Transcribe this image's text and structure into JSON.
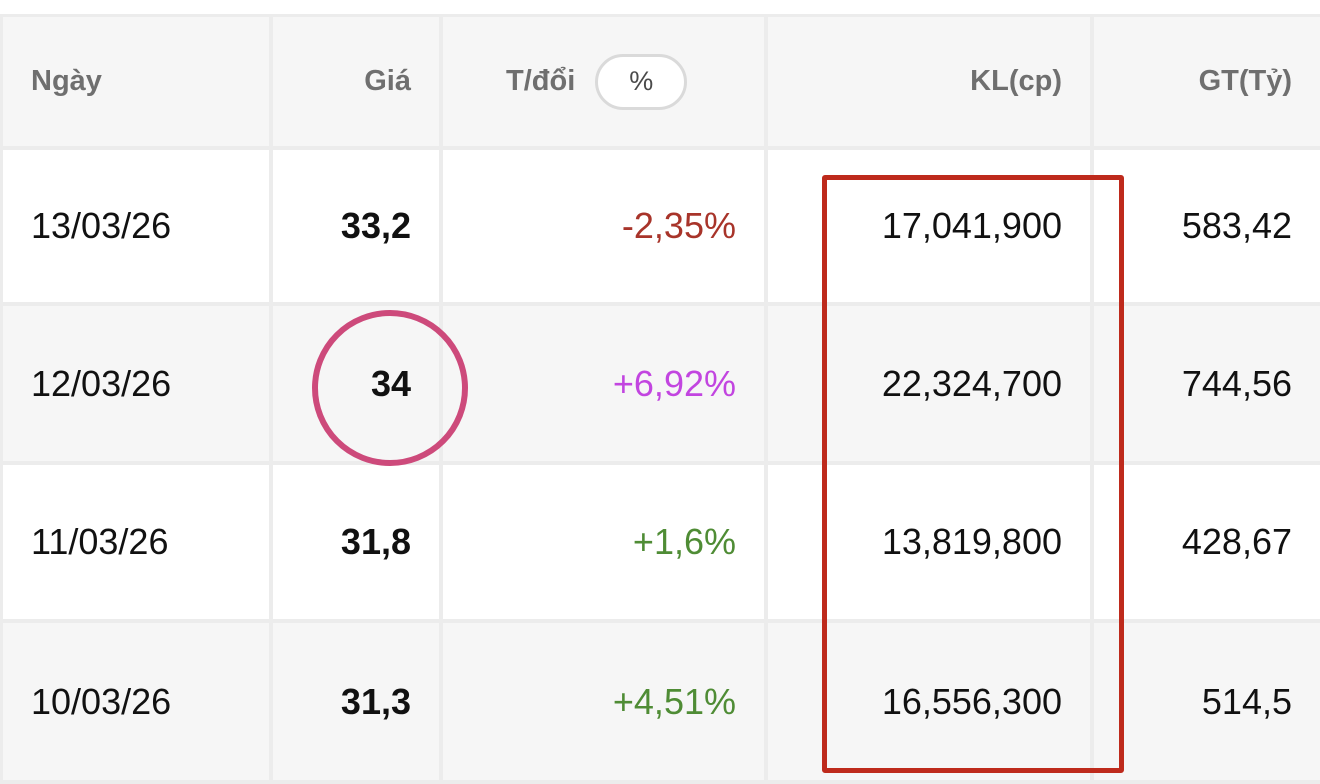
{
  "table": {
    "headers": {
      "date": "Ngày",
      "price": "Giá",
      "change": "T/đổi",
      "change_toggle": "%",
      "volume": "KL(cp)",
      "value": "GT(Tỷ)"
    },
    "rows": [
      {
        "date": "13/03/26",
        "price": "33,2",
        "change": "-2,35%",
        "change_status": "down",
        "volume": "17,041,900",
        "value": "583,42"
      },
      {
        "date": "12/03/26",
        "price": "34",
        "change": "+6,92%",
        "change_status": "ceiling",
        "volume": "22,324,700",
        "value": "744,56"
      },
      {
        "date": "11/03/26",
        "price": "31,8",
        "change": "+1,6%",
        "change_status": "up",
        "volume": "13,819,800",
        "value": "428,67"
      },
      {
        "date": "10/03/26",
        "price": "31,3",
        "change": "+4,51%",
        "change_status": "up",
        "volume": "16,556,300",
        "value": "514,5"
      }
    ]
  },
  "colors": {
    "down": "#a8342a",
    "up": "#4f8c35",
    "ceiling": "#c245e0",
    "highlight_box": "#be2a1c",
    "highlight_circle": "#cd4a7b"
  }
}
